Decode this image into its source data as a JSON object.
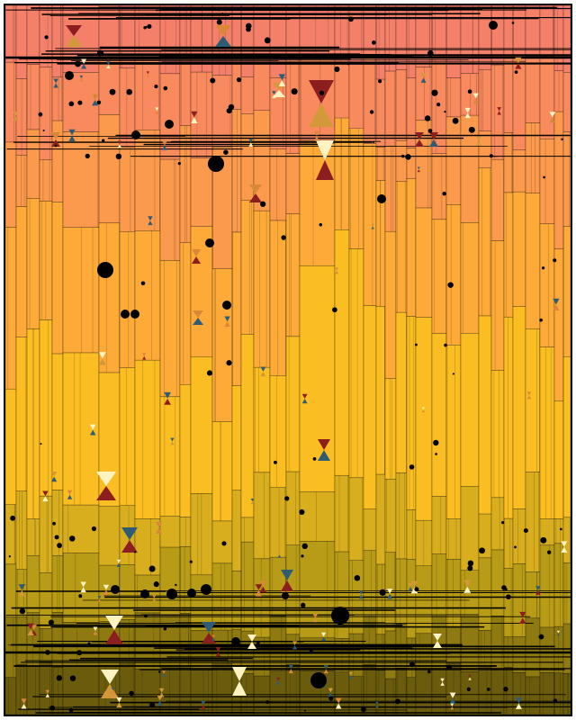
{
  "artwork": {
    "kind": "generative-abstract",
    "band_colors": [
      "#F5806A",
      "#F98A5E",
      "#FB9A4C",
      "#FDAA38",
      "#FBBE22",
      "#D9AE1E",
      "#B89B16",
      "#8E7A10",
      "#6A5C0C"
    ],
    "glyph_colors": [
      "#8C1E20",
      "#2F5C74",
      "#D3983A",
      "#FFF3C2",
      "#D9883A"
    ],
    "dot_color": "#000000",
    "line_color": "#000000"
  }
}
